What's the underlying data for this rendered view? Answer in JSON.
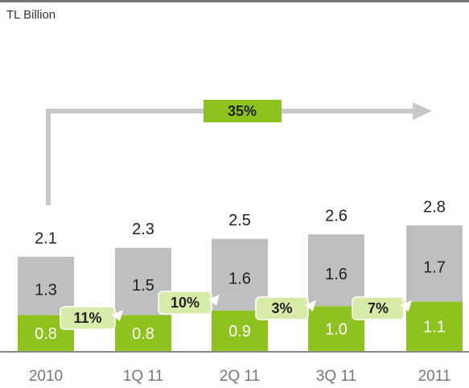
{
  "chart_data": {
    "type": "stacked_bar",
    "unit_label": "TL Billion",
    "categories": [
      "2010",
      "1Q 11",
      "2Q 11",
      "3Q 11",
      "2011"
    ],
    "series": [
      {
        "color": "#8dc21f",
        "values": [
          0.8,
          0.8,
          0.9,
          1.0,
          1.1
        ],
        "value_labels": [
          "0.8",
          "0.8",
          "0.9",
          "1.0",
          "1.1"
        ]
      },
      {
        "color": "#bfbfbf",
        "values": [
          1.3,
          1.5,
          1.6,
          1.6,
          1.7
        ]
      }
    ],
    "totals": [
      2.1,
      2.3,
      2.5,
      2.6,
      2.8
    ],
    "overall_growth": "35%",
    "period_growth": [
      "11%",
      "10%",
      "3%",
      "7%"
    ]
  }
}
